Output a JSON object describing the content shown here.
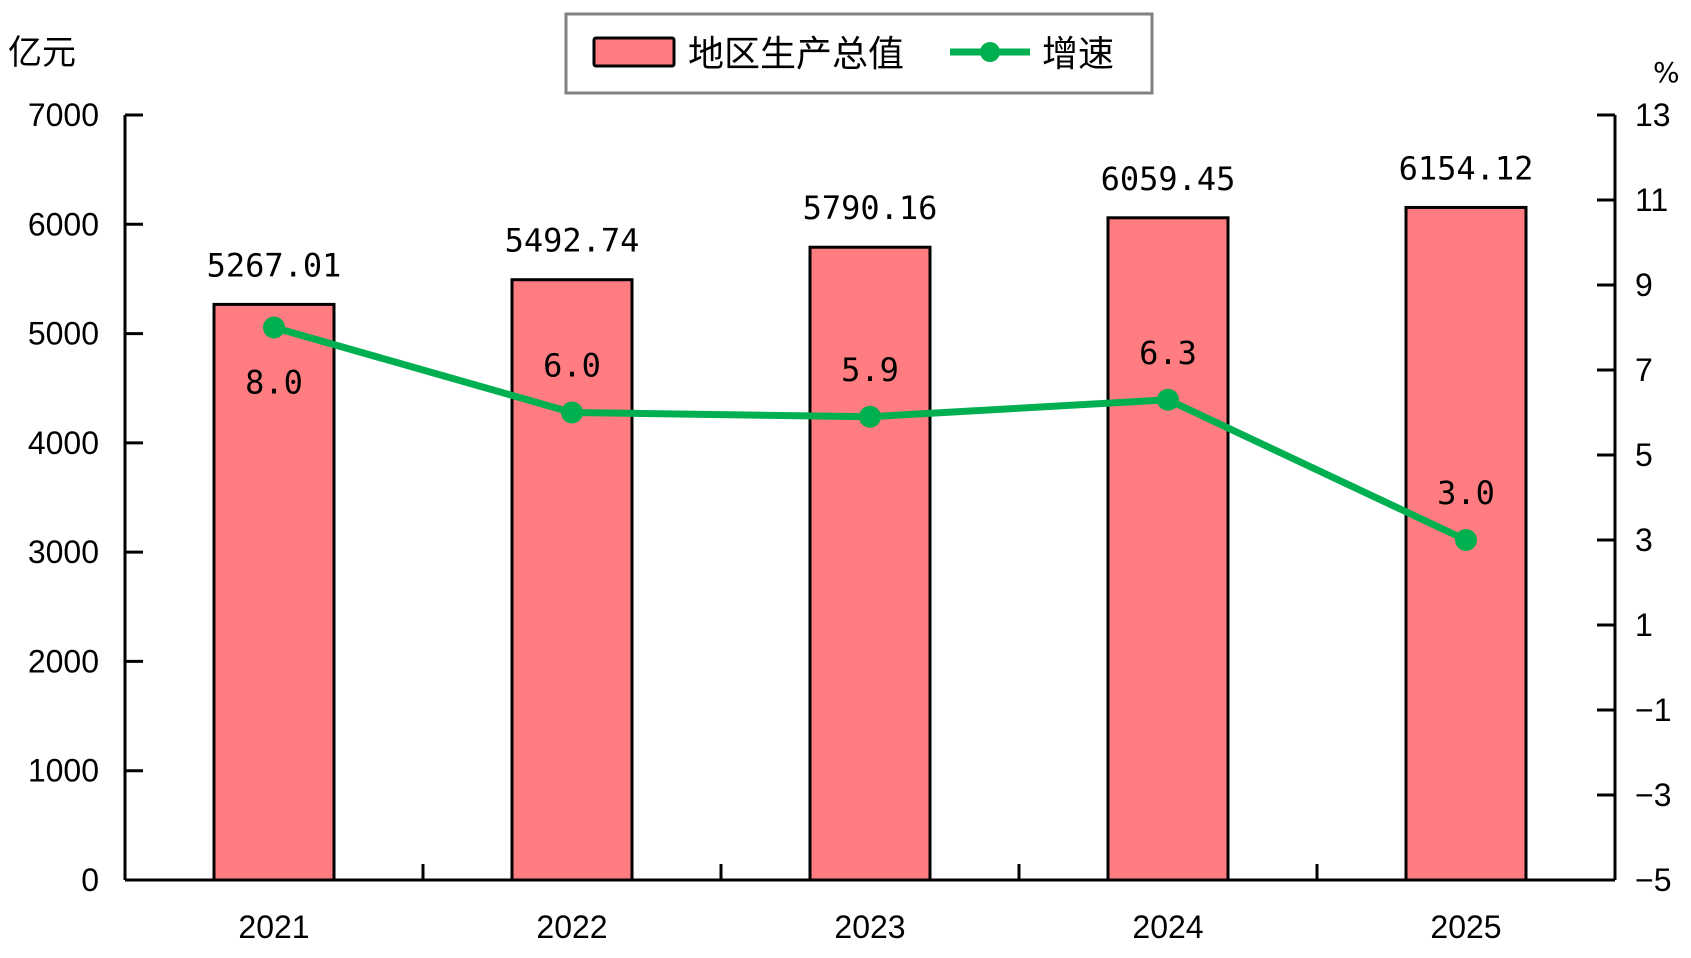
{
  "chart_data": {
    "type": "bar",
    "categories": [
      "2021",
      "2022",
      "2023",
      "2024",
      "2025"
    ],
    "series": [
      {
        "name": "地区生产总值",
        "type": "bar",
        "axis": "left",
        "values": [
          5267.01,
          5492.74,
          5790.16,
          6059.45,
          6154.12
        ],
        "labels": [
          "5267.01",
          "5492.74",
          "5790.16",
          "6059.45",
          "6154.12"
        ],
        "color": "#FF7C80"
      },
      {
        "name": "增速",
        "type": "line",
        "axis": "right",
        "values": [
          8.0,
          6.0,
          5.9,
          6.3,
          3.0
        ],
        "labels": [
          "8.0",
          "6.0",
          "5.9",
          "6.3",
          "3.0"
        ],
        "color": "#00B050"
      }
    ],
    "left_axis": {
      "unit": "亿元",
      "ylim": [
        0,
        7000
      ],
      "ticks": [
        "0",
        "1000",
        "2000",
        "3000",
        "4000",
        "5000",
        "6000",
        "7000"
      ]
    },
    "right_axis": {
      "unit": "%",
      "ylim": [
        -5,
        13
      ],
      "ticks": [
        "−5",
        "−3",
        "−1",
        "1",
        "3",
        "5",
        "7",
        "9",
        "11",
        "13"
      ]
    },
    "grid": false,
    "legend_position": "top-center"
  }
}
